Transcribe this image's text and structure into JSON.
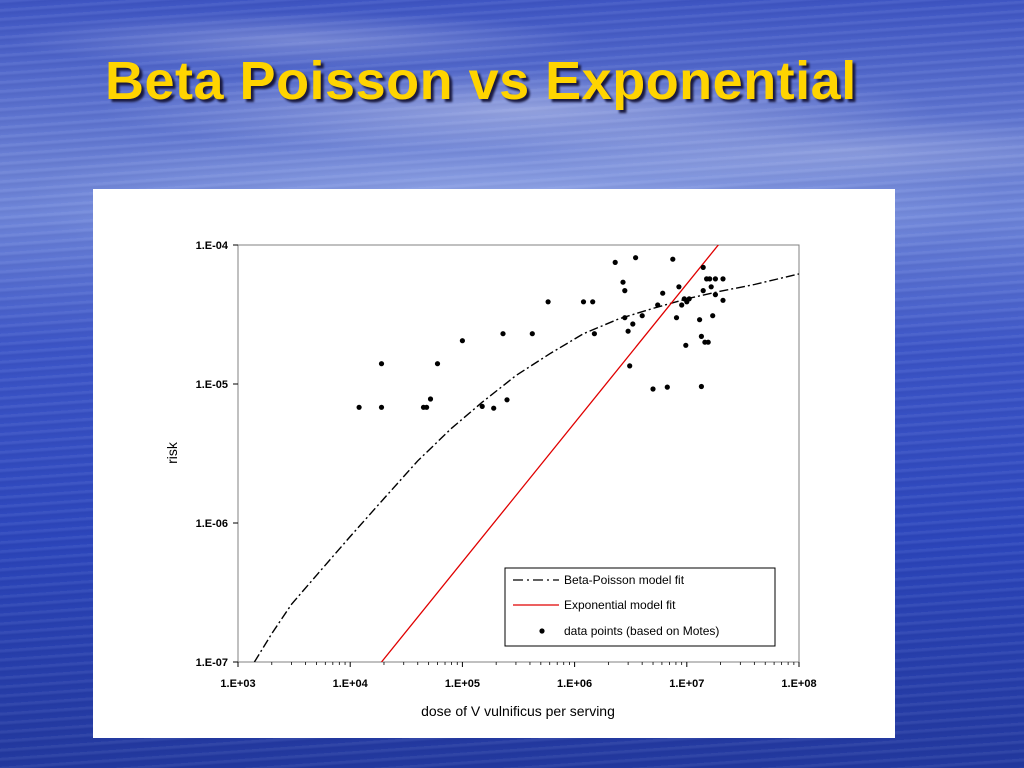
{
  "slide": {
    "title": "Beta Poisson vs Exponential"
  },
  "colors": {
    "title": "#ffd400",
    "exponential_line": "#e00000",
    "beta_poisson_line": "#000000",
    "points": "#000000"
  },
  "chart_data": {
    "type": "scatter",
    "xlabel": "dose of V vulnificus per serving",
    "ylabel": "risk",
    "xscale": "log",
    "yscale": "log",
    "xlim": [
      1000,
      100000000
    ],
    "ylim": [
      1e-07,
      0.0001
    ],
    "x_tick_labels": [
      "1.E+03",
      "1.E+04",
      "1.E+05",
      "1.E+06",
      "1.E+07",
      "1.E+08"
    ],
    "y_tick_labels": [
      "1.E-04",
      "1.E-05",
      "1.E-06",
      "1.E-07"
    ],
    "grid": false,
    "legend_position": "bottom-right",
    "legend": [
      {
        "label": "Beta-Poisson model fit",
        "style": "dash-dot"
      },
      {
        "label": "Exponential model fit",
        "style": "solid-red"
      },
      {
        "label": "data points (based on Motes)",
        "style": "dot"
      }
    ],
    "series": [
      {
        "name": "Beta-Poisson model fit",
        "kind": "line",
        "x": [
          1400,
          2000,
          3000,
          5000,
          10000,
          20000,
          40000,
          80000,
          150000,
          300000,
          600000,
          1200000,
          2500000,
          5000000,
          10000000,
          20000000,
          40000000,
          100000000
        ],
        "y": [
          1e-07,
          1.6e-07,
          2.6e-07,
          4.2e-07,
          8e-07,
          1.5e-06,
          2.8e-06,
          4.8e-06,
          7.4e-06,
          1.15e-05,
          1.65e-05,
          2.3e-05,
          2.95e-05,
          3.5e-05,
          4.1e-05,
          4.65e-05,
          5.2e-05,
          6.2e-05
        ]
      },
      {
        "name": "Exponential model fit",
        "kind": "line",
        "x": [
          19000,
          20000000
        ],
        "y": [
          1e-07,
          0.000105
        ]
      },
      {
        "name": "data points (based on Motes)",
        "kind": "scatter",
        "points": [
          [
            12000,
            6.8e-06
          ],
          [
            19000,
            1.4e-05
          ],
          [
            19000,
            6.8e-06
          ],
          [
            45000,
            6.8e-06
          ],
          [
            48000,
            6.8e-06
          ],
          [
            52000,
            7.8e-06
          ],
          [
            60000,
            1.4e-05
          ],
          [
            100000,
            2.05e-05
          ],
          [
            150000,
            6.9e-06
          ],
          [
            190000,
            6.7e-06
          ],
          [
            230000,
            2.3e-05
          ],
          [
            250000,
            7.7e-06
          ],
          [
            420000,
            2.3e-05
          ],
          [
            580000,
            3.9e-05
          ],
          [
            1200000,
            3.9e-05
          ],
          [
            1450000,
            3.9e-05
          ],
          [
            1500000,
            2.3e-05
          ],
          [
            2300000,
            7.5e-05
          ],
          [
            2700000,
            5.4e-05
          ],
          [
            2800000,
            4.7e-05
          ],
          [
            2800000,
            3e-05
          ],
          [
            3000000,
            2.4e-05
          ],
          [
            3100000,
            1.35e-05
          ],
          [
            3300000,
            2.7e-05
          ],
          [
            3500000,
            8.1e-05
          ],
          [
            4000000,
            3.1e-05
          ],
          [
            5000000,
            9.2e-06
          ],
          [
            5500000,
            3.7e-05
          ],
          [
            6100000,
            4.5e-05
          ],
          [
            6700000,
            9.5e-06
          ],
          [
            7500000,
            7.9e-05
          ],
          [
            8100000,
            3e-05
          ],
          [
            8500000,
            5e-05
          ],
          [
            9000000,
            3.7e-05
          ],
          [
            9500000,
            4.1e-05
          ],
          [
            9800000,
            1.9e-05
          ],
          [
            10000000,
            3.9e-05
          ],
          [
            10500000,
            4.1e-05
          ],
          [
            13000000,
            2.9e-05
          ],
          [
            13500000,
            2.2e-05
          ],
          [
            13500000,
            9.6e-06
          ],
          [
            14000000,
            4.7e-05
          ],
          [
            14000000,
            6.9e-05
          ],
          [
            14500000,
            2e-05
          ],
          [
            15000000,
            5.7e-05
          ],
          [
            15500000,
            2e-05
          ],
          [
            16000000,
            5.7e-05
          ],
          [
            16500000,
            5e-05
          ],
          [
            17000000,
            3.1e-05
          ],
          [
            18000000,
            4.4e-05
          ],
          [
            18000000,
            5.7e-05
          ],
          [
            21000000,
            5.7e-05
          ],
          [
            21000000,
            4e-05
          ]
        ]
      }
    ]
  }
}
